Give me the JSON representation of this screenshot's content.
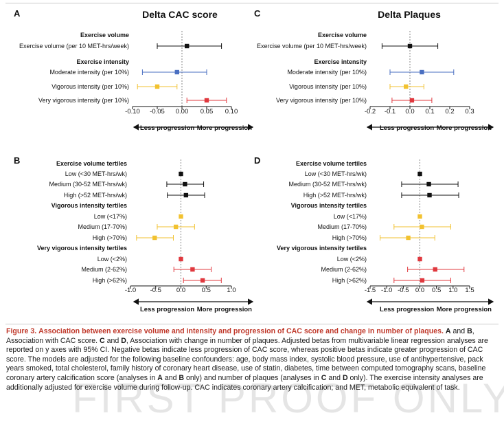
{
  "colors": {
    "black": "#111111",
    "blue": "#4a6fc1",
    "yellow": "#f2c230",
    "red": "#e0383e",
    "caption_title": "#c0392b"
  },
  "chart_data": [
    {
      "panel": "A",
      "type": "forest",
      "title": "Delta CAC score",
      "xlim": [
        -0.1,
        0.1
      ],
      "xticks": [
        "-0.10",
        "-0.05",
        "0.00",
        "0.05",
        "0.10"
      ],
      "arrow_labels": [
        "Less progression",
        "More progression"
      ],
      "rows": [
        {
          "kind": "header",
          "label": "Exercise volume"
        },
        {
          "kind": "data",
          "label": "Exercise volume (per 10 MET-hrs/week)",
          "est": 0.01,
          "lo": -0.05,
          "hi": 0.08,
          "color": "black"
        },
        {
          "kind": "header",
          "label": "Exercise intensity"
        },
        {
          "kind": "data",
          "label": "Moderate intensity (per 10%)",
          "est": -0.01,
          "lo": -0.08,
          "hi": 0.05,
          "color": "blue"
        },
        {
          "kind": "data",
          "label": "Vigorous intensity (per 10%)",
          "est": -0.05,
          "lo": -0.09,
          "hi": -0.01,
          "color": "yellow"
        },
        {
          "kind": "data",
          "label": "Very vigorous intensity (per 10%)",
          "est": 0.05,
          "lo": 0.01,
          "hi": 0.09,
          "color": "red"
        }
      ]
    },
    {
      "panel": "C",
      "type": "forest",
      "title": "Delta Plaques",
      "xlim": [
        -0.2,
        0.3
      ],
      "xticks": [
        "-0.2",
        "-0.1",
        "0.0",
        "0.1",
        "0.2",
        "0.3"
      ],
      "arrow_labels": [
        "Less progression",
        "More progression"
      ],
      "rows": [
        {
          "kind": "header",
          "label": "Exercise volume"
        },
        {
          "kind": "data",
          "label": "Exercise volume (per 10 MET-hrs/week)",
          "est": 0.0,
          "lo": -0.14,
          "hi": 0.14,
          "color": "black"
        },
        {
          "kind": "header",
          "label": "Exercise intensity"
        },
        {
          "kind": "data",
          "label": "Moderate intensity (per 10%)",
          "est": 0.06,
          "lo": -0.1,
          "hi": 0.22,
          "color": "blue"
        },
        {
          "kind": "data",
          "label": "Vigorous intensity (per 10%)",
          "est": -0.02,
          "lo": -0.1,
          "hi": 0.07,
          "color": "yellow"
        },
        {
          "kind": "data",
          "label": "Very vigorous intensity (per 10%)",
          "est": 0.01,
          "lo": -0.09,
          "hi": 0.11,
          "color": "red"
        }
      ]
    },
    {
      "panel": "B",
      "type": "forest",
      "title": "",
      "xlim": [
        -1.0,
        1.0
      ],
      "xticks": [
        "-1.0",
        "-0.5",
        "0.0",
        "0.5",
        "1.0"
      ],
      "arrow_labels": [
        "Less progression",
        "More progression"
      ],
      "rows": [
        {
          "kind": "header",
          "label": "Exercise volume tertiles"
        },
        {
          "kind": "data",
          "label": "Low (<30 MET-hrs/wk)",
          "est": 0.0,
          "lo": null,
          "hi": null,
          "color": "black"
        },
        {
          "kind": "data",
          "label": "Medium (30-52 MET-hrs/wk)",
          "est": 0.08,
          "lo": -0.28,
          "hi": 0.45,
          "color": "black"
        },
        {
          "kind": "data",
          "label": "High (>52 MET-hrs/wk)",
          "est": 0.1,
          "lo": -0.27,
          "hi": 0.47,
          "color": "black"
        },
        {
          "kind": "header",
          "label": "Vigorous intensity tertiles"
        },
        {
          "kind": "data",
          "label": "Low (<17%)",
          "est": 0.0,
          "lo": null,
          "hi": null,
          "color": "yellow"
        },
        {
          "kind": "data",
          "label": "Medium (17-70%)",
          "est": -0.1,
          "lo": -0.47,
          "hi": 0.27,
          "color": "yellow"
        },
        {
          "kind": "data",
          "label": "High (>70%)",
          "est": -0.52,
          "lo": -0.88,
          "hi": -0.15,
          "color": "yellow"
        },
        {
          "kind": "header",
          "label": "Very vigorous intensity tertiles"
        },
        {
          "kind": "data",
          "label": "Low (<2%)",
          "est": 0.0,
          "lo": null,
          "hi": null,
          "color": "red"
        },
        {
          "kind": "data",
          "label": "Medium (2-62%)",
          "est": 0.23,
          "lo": -0.14,
          "hi": 0.6,
          "color": "red"
        },
        {
          "kind": "data",
          "label": "High (>62%)",
          "est": 0.43,
          "lo": 0.05,
          "hi": 0.8,
          "color": "red"
        }
      ]
    },
    {
      "panel": "D",
      "type": "forest",
      "title": "",
      "xlim": [
        -1.5,
        1.5
      ],
      "xticks": [
        "-1.5",
        "-1.0",
        "-0.5",
        "0.0",
        "0.5",
        "1.0",
        "1.5"
      ],
      "arrow_labels": [
        "Less progression",
        "More progression"
      ],
      "rows": [
        {
          "kind": "header",
          "label": "Exercise volume tertiles"
        },
        {
          "kind": "data",
          "label": "Low (<30 MET-hrs/wk)",
          "est": 0.0,
          "lo": null,
          "hi": null,
          "color": "black"
        },
        {
          "kind": "data",
          "label": "Medium (30-52 MET-hrs/wk)",
          "est": 0.27,
          "lo": -0.55,
          "hi": 1.15,
          "color": "black"
        },
        {
          "kind": "data",
          "label": "High (>52 MET-hrs/wk)",
          "est": 0.29,
          "lo": -0.55,
          "hi": 1.17,
          "color": "black"
        },
        {
          "kind": "header",
          "label": "Vigorous intensity tertiles"
        },
        {
          "kind": "data",
          "label": "Low (<17%)",
          "est": 0.0,
          "lo": null,
          "hi": null,
          "color": "yellow"
        },
        {
          "kind": "data",
          "label": "Medium (17-70%)",
          "est": 0.06,
          "lo": -0.78,
          "hi": 0.93,
          "color": "yellow"
        },
        {
          "kind": "data",
          "label": "High (>70%)",
          "est": -0.35,
          "lo": -1.2,
          "hi": 0.45,
          "color": "yellow"
        },
        {
          "kind": "header",
          "label": "Very vigorous intensity tertiles"
        },
        {
          "kind": "data",
          "label": "Low (<2%)",
          "est": 0.0,
          "lo": null,
          "hi": null,
          "color": "red"
        },
        {
          "kind": "data",
          "label": "Medium (2-62%)",
          "est": 0.46,
          "lo": -0.37,
          "hi": 1.33,
          "color": "red"
        },
        {
          "kind": "data",
          "label": "High (>62%)",
          "est": 0.07,
          "lo": -0.78,
          "hi": 0.93,
          "color": "red"
        }
      ]
    }
  ],
  "caption": {
    "label": "Figure 3.",
    "title": "Association between exercise volume and intensity and progression of CAC score and change in number of plaques.",
    "segments": [
      {
        "b": true,
        "t": "A"
      },
      {
        "b": false,
        "t": " and "
      },
      {
        "b": true,
        "t": "B"
      },
      {
        "b": false,
        "t": ", Association with CAC score. "
      },
      {
        "b": true,
        "t": "C"
      },
      {
        "b": false,
        "t": " and "
      },
      {
        "b": true,
        "t": "D"
      },
      {
        "b": false,
        "t": ", Association with change in number of plaques. Adjusted betas from multivariable linear regression analyses are reported on y axes with 95% CI. Negative betas indicate less progression of CAC score, whereas positive betas indicate greater progression of CAC score. The models are adjusted for the following baseline confounders: age, body mass index, systolic blood pressure, use of antihypertensive, pack years smoked, total cholesterol, family history of coronary heart disease, use of statin, diabetes, time between computed tomography scans, baseline coronary artery calcification score (analyses in "
      },
      {
        "b": true,
        "t": "A"
      },
      {
        "b": false,
        "t": " and "
      },
      {
        "b": true,
        "t": "B"
      },
      {
        "b": false,
        "t": " only) and number of plaques (analyses in "
      },
      {
        "b": true,
        "t": "C"
      },
      {
        "b": false,
        "t": " and "
      },
      {
        "b": true,
        "t": "D"
      },
      {
        "b": false,
        "t": " only). The exercise intensity analyses are additionally adjusted for exercise volume during follow-up. CAC indicates coronary artery calcification; and MET, metabolic equivalent of task."
      }
    ]
  },
  "watermark": "FIRST PROOF ONLY"
}
